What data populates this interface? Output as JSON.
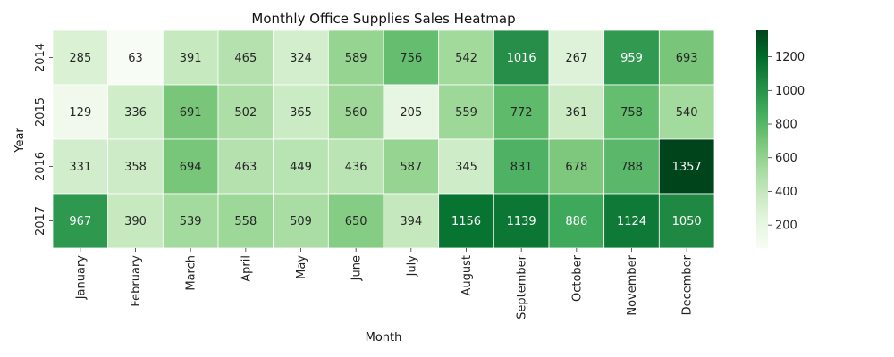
{
  "chart_data": {
    "type": "heatmap",
    "title": "Monthly Office Supplies Sales Heatmap",
    "xlabel": "Month",
    "ylabel": "Year",
    "x_categories": [
      "January",
      "February",
      "March",
      "April",
      "May",
      "June",
      "July",
      "August",
      "September",
      "October",
      "November",
      "December"
    ],
    "y_categories": [
      "2014",
      "2015",
      "2016",
      "2017"
    ],
    "values": [
      [
        285,
        63,
        391,
        465,
        324,
        589,
        756,
        542,
        1016,
        267,
        959,
        693
      ],
      [
        129,
        336,
        691,
        502,
        365,
        560,
        205,
        559,
        772,
        361,
        758,
        540
      ],
      [
        331,
        358,
        694,
        463,
        449,
        436,
        587,
        345,
        831,
        678,
        788,
        1357
      ],
      [
        967,
        390,
        539,
        558,
        509,
        650,
        394,
        1156,
        1139,
        886,
        1124,
        1050
      ]
    ],
    "colorbar": {
      "min": 63,
      "max": 1357,
      "ticks": [
        200,
        400,
        600,
        800,
        1000,
        1200
      ]
    },
    "colormap": "Greens",
    "colors": [
      "#f7fcf5",
      "#e5f5e0",
      "#c7e9c0",
      "#a1d99b",
      "#74c476",
      "#41ab5d",
      "#238b45",
      "#006d2c",
      "#00441b"
    ]
  }
}
